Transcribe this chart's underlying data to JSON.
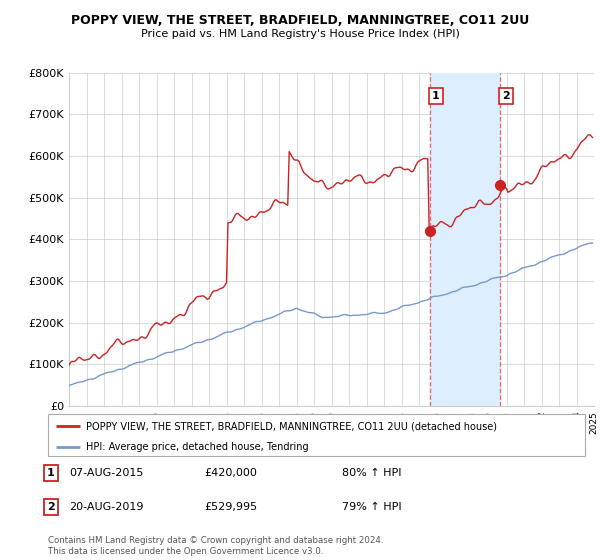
{
  "title": "POPPY VIEW, THE STREET, BRADFIELD, MANNINGTREE, CO11 2UU",
  "subtitle": "Price paid vs. HM Land Registry's House Price Index (HPI)",
  "legend_line1": "POPPY VIEW, THE STREET, BRADFIELD, MANNINGTREE, CO11 2UU (detached house)",
  "legend_line2": "HPI: Average price, detached house, Tendring",
  "transaction1_date": "07-AUG-2015",
  "transaction1_price": "£420,000",
  "transaction1_hpi": "80% ↑ HPI",
  "transaction2_date": "20-AUG-2019",
  "transaction2_price": "£529,995",
  "transaction2_hpi": "79% ↑ HPI",
  "footer": "Contains HM Land Registry data © Crown copyright and database right 2024.\nThis data is licensed under the Open Government Licence v3.0.",
  "red_color": "#cc2222",
  "blue_color": "#7799cc",
  "shaded_color": "#ddeeff",
  "marker1_x": 2015.6,
  "marker1_y": 420000,
  "marker2_x": 2019.6,
  "marker2_y": 529995,
  "vline1_x": 2015.6,
  "vline2_x": 2019.6,
  "ylim": [
    0,
    800000
  ],
  "xlim_start": 1995.0,
  "xlim_end": 2025.0
}
